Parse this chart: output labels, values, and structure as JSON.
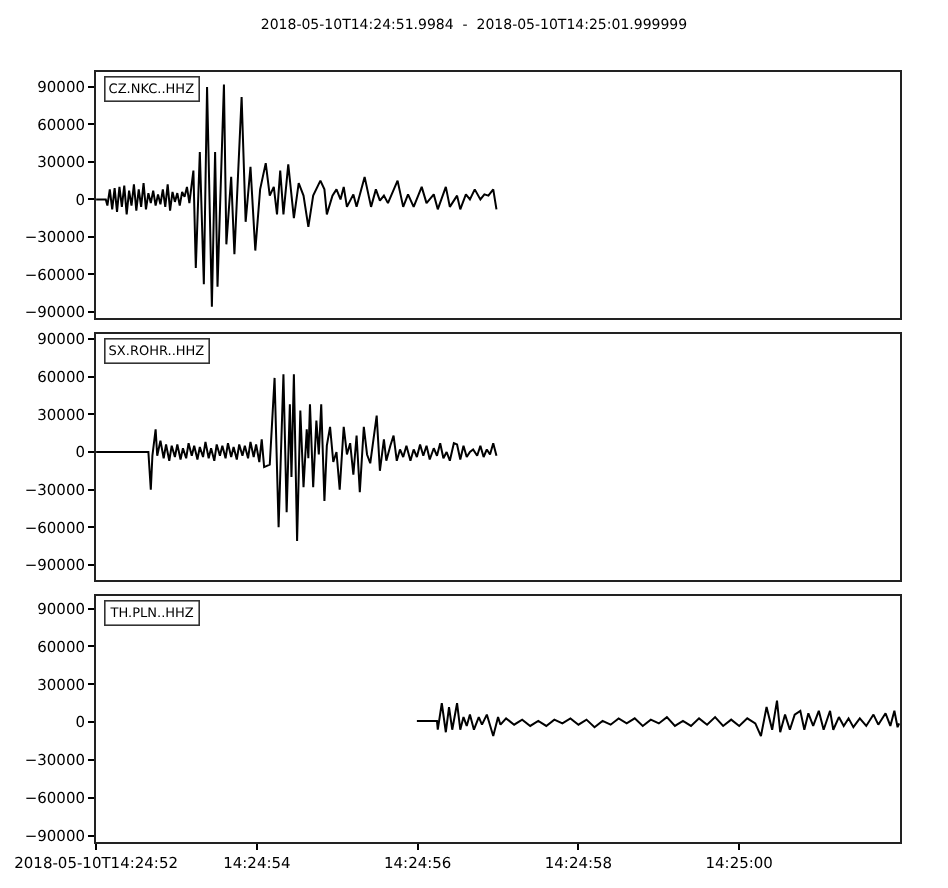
{
  "chart_data": [
    {
      "type": "line",
      "title": "2018-05-10T14:24:51.9984  -  2018-05-10T14:25:01.999999",
      "xlim": [
        "2018-05-10T14:24:51.9984",
        "2018-05-10T14:25:02"
      ],
      "ylim": [
        -95000,
        102000
      ],
      "yticks": [
        -90000,
        -60000,
        -30000,
        0,
        30000,
        60000,
        90000
      ],
      "tick_labels": "y",
      "series": [
        {
          "name": "CZ.NKC..HHZ",
          "color": "#000000",
          "x": [
            "2018-05-10T14:24:52.00",
            "2018-05-10T14:24:52.12",
            "2018-05-10T14:24:52.14",
            "2018-05-10T14:24:52.17",
            "2018-05-10T14:24:52.20",
            "2018-05-10T14:24:52.23",
            "2018-05-10T14:24:52.26",
            "2018-05-10T14:24:52.29",
            "2018-05-10T14:24:52.32",
            "2018-05-10T14:24:52.35",
            "2018-05-10T14:24:52.38",
            "2018-05-10T14:24:52.41",
            "2018-05-10T14:24:52.44",
            "2018-05-10T14:24:52.47",
            "2018-05-10T14:24:52.50",
            "2018-05-10T14:24:52.53",
            "2018-05-10T14:24:52.56",
            "2018-05-10T14:24:52.59",
            "2018-05-10T14:24:52.62",
            "2018-05-10T14:24:52.65",
            "2018-05-10T14:24:52.68",
            "2018-05-10T14:24:52.71",
            "2018-05-10T14:24:52.74",
            "2018-05-10T14:24:52.77",
            "2018-05-10T14:24:52.80",
            "2018-05-10T14:24:52.83",
            "2018-05-10T14:24:52.86",
            "2018-05-10T14:24:52.89",
            "2018-05-10T14:24:52.92",
            "2018-05-10T14:24:52.95",
            "2018-05-10T14:24:52.98",
            "2018-05-10T14:24:53.01",
            "2018-05-10T14:24:53.04",
            "2018-05-10T14:24:53.07",
            "2018-05-10T14:24:53.10",
            "2018-05-10T14:24:53.13",
            "2018-05-10T14:24:53.16",
            "2018-05-10T14:24:53.21",
            "2018-05-10T14:24:53.24",
            "2018-05-10T14:24:53.29",
            "2018-05-10T14:24:53.34",
            "2018-05-10T14:24:53.38",
            "2018-05-10T14:24:53.44",
            "2018-05-10T14:24:53.48",
            "2018-05-10T14:24:53.51",
            "2018-05-10T14:24:53.59",
            "2018-05-10T14:24:53.62",
            "2018-05-10T14:24:53.68",
            "2018-05-10T14:24:53.72",
            "2018-05-10T14:24:53.81",
            "2018-05-10T14:24:53.86",
            "2018-05-10T14:24:53.92",
            "2018-05-10T14:24:53.98",
            "2018-05-10T14:24:54.04",
            "2018-05-10T14:24:54.11",
            "2018-05-10T14:24:54.16",
            "2018-05-10T14:24:54.21",
            "2018-05-10T14:24:54.25",
            "2018-05-10T14:24:54.29",
            "2018-05-10T14:24:54.33",
            "2018-05-10T14:24:54.39",
            "2018-05-10T14:24:54.46",
            "2018-05-10T14:24:54.52",
            "2018-05-10T14:24:54.58",
            "2018-05-10T14:24:54.64",
            "2018-05-10T14:24:54.70",
            "2018-05-10T14:24:54.79",
            "2018-05-10T14:24:54.84",
            "2018-05-10T14:24:54.87",
            "2018-05-10T14:24:54.94",
            "2018-05-10T14:24:54.99",
            "2018-05-10T14:24:55.04",
            "2018-05-10T14:24:55.08",
            "2018-05-10T14:24:55.12",
            "2018-05-10T14:24:55.20",
            "2018-05-10T14:24:55.24",
            "2018-05-10T14:24:55.34",
            "2018-05-10T14:24:55.42",
            "2018-05-10T14:24:55.48",
            "2018-05-10T14:24:55.53",
            "2018-05-10T14:24:55.58",
            "2018-05-10T14:24:55.63",
            "2018-05-10T14:24:55.75",
            "2018-05-10T14:24:55.82",
            "2018-05-10T14:24:55.88",
            "2018-05-10T14:24:55.95",
            "2018-05-10T14:24:56.05",
            "2018-05-10T14:24:56.11",
            "2018-05-10T14:24:56.20",
            "2018-05-10T14:24:56.25",
            "2018-05-10T14:24:56.35",
            "2018-05-10T14:24:56.40",
            "2018-05-10T14:24:56.49",
            "2018-05-10T14:24:56.53",
            "2018-05-10T14:24:56.60",
            "2018-05-10T14:24:56.65",
            "2018-05-10T14:24:56.71",
            "2018-05-10T14:24:56.78",
            "2018-05-10T14:24:56.83",
            "2018-05-10T14:24:56.88",
            "2018-05-10T14:24:56.94",
            "2018-05-10T14:24:56.98"
          ],
          "values": [
            0,
            0,
            -5000,
            8000,
            -8000,
            9000,
            -10000,
            10000,
            -6000,
            11000,
            -12000,
            7000,
            -5000,
            12000,
            -9000,
            8000,
            -6000,
            13000,
            -8000,
            5000,
            -3000,
            7000,
            -5000,
            4000,
            -4000,
            8000,
            -6000,
            12000,
            -9000,
            6000,
            -2000,
            5000,
            -5000,
            6000,
            2000,
            10000,
            -3000,
            23000,
            -55000,
            38000,
            -68000,
            90000,
            -86000,
            38000,
            -70000,
            92000,
            -36000,
            18000,
            -44000,
            82000,
            -18000,
            26000,
            -41000,
            8000,
            29000,
            3000,
            10000,
            -12000,
            23000,
            -12000,
            28000,
            -15000,
            13000,
            3000,
            -22000,
            3000,
            15000,
            8000,
            -12000,
            3000,
            8000,
            0,
            10000,
            -6000,
            4000,
            -6000,
            18000,
            -6000,
            8000,
            -1000,
            3000,
            -3000,
            15000,
            -6000,
            4000,
            -6000,
            10000,
            -3000,
            4000,
            -8000,
            10000,
            -6000,
            3000,
            -8000,
            4000,
            0,
            8000,
            0,
            4000,
            3000,
            8000,
            -8000
          ]
        }
      ]
    },
    {
      "type": "line",
      "xlim": [
        "2018-05-10T14:24:51.9984",
        "2018-05-10T14:25:02"
      ],
      "ylim": [
        -102000,
        94000
      ],
      "yticks": [
        -90000,
        -60000,
        -30000,
        0,
        30000,
        60000,
        90000
      ],
      "tick_labels": "y",
      "series": [
        {
          "name": "SX.ROHR..HHZ",
          "color": "#000000",
          "x": [
            "2018-05-10T14:24:52.00",
            "2018-05-10T14:24:52.65",
            "2018-05-10T14:24:52.68",
            "2018-05-10T14:24:52.70",
            "2018-05-10T14:24:52.74",
            "2018-05-10T14:24:52.76",
            "2018-05-10T14:24:52.80",
            "2018-05-10T14:24:52.84",
            "2018-05-10T14:24:52.87",
            "2018-05-10T14:24:52.91",
            "2018-05-10T14:24:52.94",
            "2018-05-10T14:24:52.98",
            "2018-05-10T14:24:53.01",
            "2018-05-10T14:24:53.05",
            "2018-05-10T14:24:53.08",
            "2018-05-10T14:24:53.12",
            "2018-05-10T14:24:53.15",
            "2018-05-10T14:24:53.19",
            "2018-05-10T14:24:53.22",
            "2018-05-10T14:24:53.26",
            "2018-05-10T14:24:53.29",
            "2018-05-10T14:24:53.33",
            "2018-05-10T14:24:53.36",
            "2018-05-10T14:24:53.40",
            "2018-05-10T14:24:53.43",
            "2018-05-10T14:24:53.47",
            "2018-05-10T14:24:53.50",
            "2018-05-10T14:24:53.54",
            "2018-05-10T14:24:53.57",
            "2018-05-10T14:24:53.61",
            "2018-05-10T14:24:53.64",
            "2018-05-10T14:24:53.68",
            "2018-05-10T14:24:53.71",
            "2018-05-10T14:24:53.75",
            "2018-05-10T14:24:53.78",
            "2018-05-10T14:24:53.82",
            "2018-05-10T14:24:53.85",
            "2018-05-10T14:24:53.89",
            "2018-05-10T14:24:53.92",
            "2018-05-10T14:24:53.96",
            "2018-05-10T14:24:53.99",
            "2018-05-10T14:24:54.03",
            "2018-05-10T14:24:54.06",
            "2018-05-10T14:24:54.09",
            "2018-05-10T14:24:54.16",
            "2018-05-10T14:24:54.22",
            "2018-05-10T14:24:54.27",
            "2018-05-10T14:24:54.33",
            "2018-05-10T14:24:54.37",
            "2018-05-10T14:24:54.41",
            "2018-05-10T14:24:54.43",
            "2018-05-10T14:24:54.46",
            "2018-05-10T14:24:54.50",
            "2018-05-10T14:24:54.54",
            "2018-05-10T14:24:54.58",
            "2018-05-10T14:24:54.62",
            "2018-05-10T14:24:54.64",
            "2018-05-10T14:24:54.66",
            "2018-05-10T14:24:54.70",
            "2018-05-10T14:24:54.74",
            "2018-05-10T14:24:54.77",
            "2018-05-10T14:24:54.80",
            "2018-05-10T14:24:54.84",
            "2018-05-10T14:24:54.87",
            "2018-05-10T14:24:54.91",
            "2018-05-10T14:24:54.95",
            "2018-05-10T14:24:54.99",
            "2018-05-10T14:24:55.03",
            "2018-05-10T14:24:55.08",
            "2018-05-10T14:24:55.12",
            "2018-05-10T14:24:55.16",
            "2018-05-10T14:24:55.20",
            "2018-05-10T14:24:55.24",
            "2018-05-10T14:24:55.28",
            "2018-05-10T14:24:55.33",
            "2018-05-10T14:24:55.37",
            "2018-05-10T14:24:55.41",
            "2018-05-10T14:24:55.45",
            "2018-05-10T14:24:55.49",
            "2018-05-10T14:24:55.53",
            "2018-05-10T14:24:55.58",
            "2018-05-10T14:24:55.61",
            "2018-05-10T14:24:55.66",
            "2018-05-10T14:24:55.70",
            "2018-05-10T14:24:55.74",
            "2018-05-10T14:24:55.78",
            "2018-05-10T14:24:55.82",
            "2018-05-10T14:24:55.86",
            "2018-05-10T14:24:55.91",
            "2018-05-10T14:24:55.95",
            "2018-05-10T14:24:55.99",
            "2018-05-10T14:24:56.03",
            "2018-05-10T14:24:56.07",
            "2018-05-10T14:24:56.11",
            "2018-05-10T14:24:56.15",
            "2018-05-10T14:24:56.20",
            "2018-05-10T14:24:56.24",
            "2018-05-10T14:24:56.28",
            "2018-05-10T14:24:56.32",
            "2018-05-10T14:24:56.36",
            "2018-05-10T14:24:56.40",
            "2018-05-10T14:24:56.45",
            "2018-05-10T14:24:56.49",
            "2018-05-10T14:24:56.53",
            "2018-05-10T14:24:56.57",
            "2018-05-10T14:24:56.61",
            "2018-05-10T14:24:56.65",
            "2018-05-10T14:24:56.69",
            "2018-05-10T14:24:56.74",
            "2018-05-10T14:24:56.78",
            "2018-05-10T14:24:56.82",
            "2018-05-10T14:24:56.86",
            "2018-05-10T14:24:56.90",
            "2018-05-10T14:24:56.94",
            "2018-05-10T14:24:56.98"
          ],
          "values": [
            0,
            0,
            -30000,
            -3000,
            18000,
            -3000,
            9000,
            -5000,
            6000,
            -7000,
            5000,
            -4000,
            6000,
            -6000,
            3000,
            -5000,
            7000,
            -3000,
            5000,
            -6000,
            4000,
            -4000,
            8000,
            -5000,
            3000,
            -7000,
            6000,
            -3000,
            5000,
            -5000,
            7000,
            -4000,
            4000,
            -6000,
            6000,
            -3000,
            5000,
            -5000,
            8000,
            -4000,
            6000,
            -8000,
            10000,
            -12000,
            -10000,
            59000,
            -60000,
            62000,
            -48000,
            38000,
            -20000,
            62000,
            -71000,
            33000,
            -28000,
            18000,
            -5000,
            38000,
            -28000,
            25000,
            -2000,
            38000,
            -39000,
            5000,
            20000,
            -8000,
            0,
            -30000,
            20000,
            -2000,
            7000,
            -18000,
            13000,
            -32000,
            20000,
            -2000,
            -9000,
            10000,
            29000,
            -15000,
            10000,
            -7000,
            5000,
            13000,
            -7000,
            2000,
            -4000,
            5000,
            -7000,
            2000,
            -4000,
            6000,
            -3000,
            5000,
            -6000,
            3000,
            -3000,
            7000,
            -5000,
            0,
            -7000,
            7000,
            6000,
            -6000,
            5000,
            -4000,
            0,
            2000,
            -3000,
            5000,
            -4000,
            2000,
            -2000,
            7000,
            -3000
          ]
        }
      ]
    },
    {
      "type": "line",
      "xlim": [
        "2018-05-10T14:24:51.9984",
        "2018-05-10T14:25:02"
      ],
      "ylim": [
        -95000,
        100000
      ],
      "xticks": [
        {
          "value": "2018-05-10T14:24:52",
          "label": "2018-05-10T14:24:52"
        },
        {
          "value": "2018-05-10T14:24:54",
          "label": "14:24:54"
        },
        {
          "value": "2018-05-10T14:24:56",
          "label": "14:24:56"
        },
        {
          "value": "2018-05-10T14:24:58",
          "label": "14:24:58"
        },
        {
          "value": "2018-05-10T14:25:00",
          "label": "14:25:00"
        }
      ],
      "yticks": [
        -90000,
        -60000,
        -30000,
        0,
        30000,
        60000,
        90000
      ],
      "series": [
        {
          "name": "TH.PLN..HHZ",
          "color": "#000000",
          "x": [
            "2018-05-10T14:24:55.99",
            "2018-05-10T14:24:56.24",
            "2018-05-10T14:24:56.25",
            "2018-05-10T14:24:56.30",
            "2018-05-10T14:24:56.35",
            "2018-05-10T14:24:56.39",
            "2018-05-10T14:24:56.43",
            "2018-05-10T14:24:56.49",
            "2018-05-10T14:24:56.53",
            "2018-05-10T14:24:56.57",
            "2018-05-10T14:24:56.61",
            "2018-05-10T14:24:56.65",
            "2018-05-10T14:24:56.70",
            "2018-05-10T14:24:56.76",
            "2018-05-10T14:24:56.80",
            "2018-05-10T14:24:56.86",
            "2018-05-10T14:24:56.94",
            "2018-05-10T14:24:57.00",
            "2018-05-10T14:24:57.03",
            "2018-05-10T14:24:57.10",
            "2018-05-10T14:24:57.20",
            "2018-05-10T14:24:57.30",
            "2018-05-10T14:24:57.40",
            "2018-05-10T14:24:57.50",
            "2018-05-10T14:24:57.60",
            "2018-05-10T14:24:57.70",
            "2018-05-10T14:24:57.80",
            "2018-05-10T14:24:57.90",
            "2018-05-10T14:24:58.00",
            "2018-05-10T14:24:58.10",
            "2018-05-10T14:24:58.20",
            "2018-05-10T14:24:58.30",
            "2018-05-10T14:24:58.40",
            "2018-05-10T14:24:58.50",
            "2018-05-10T14:24:58.60",
            "2018-05-10T14:24:58.70",
            "2018-05-10T14:24:58.80",
            "2018-05-10T14:24:58.90",
            "2018-05-10T14:24:59.00",
            "2018-05-10T14:24:59.10",
            "2018-05-10T14:24:59.20",
            "2018-05-10T14:24:59.30",
            "2018-05-10T14:24:59.40",
            "2018-05-10T14:24:59.50",
            "2018-05-10T14:24:59.60",
            "2018-05-10T14:24:59.70",
            "2018-05-10T14:24:59.80",
            "2018-05-10T14:24:59.90",
            "2018-05-10T14:25:00.00",
            "2018-05-10T14:25:00.10",
            "2018-05-10T14:25:00.20",
            "2018-05-10T14:25:00.27",
            "2018-05-10T14:25:00.34",
            "2018-05-10T14:25:00.41",
            "2018-05-10T14:25:00.47",
            "2018-05-10T14:25:00.51",
            "2018-05-10T14:25:00.57",
            "2018-05-10T14:25:00.63",
            "2018-05-10T14:25:00.69",
            "2018-05-10T14:25:00.76",
            "2018-05-10T14:25:00.81",
            "2018-05-10T14:25:00.86",
            "2018-05-10T14:25:00.92",
            "2018-05-10T14:25:00.99",
            "2018-05-10T14:25:01.05",
            "2018-05-10T14:25:01.13",
            "2018-05-10T14:25:01.17",
            "2018-05-10T14:25:01.24",
            "2018-05-10T14:25:01.30",
            "2018-05-10T14:25:01.36",
            "2018-05-10T14:25:01.42",
            "2018-05-10T14:25:01.50",
            "2018-05-10T14:25:01.58",
            "2018-05-10T14:25:01.67",
            "2018-05-10T14:25:01.73",
            "2018-05-10T14:25:01.82",
            "2018-05-10T14:25:01.88",
            "2018-05-10T14:25:01.93",
            "2018-05-10T14:25:01.97",
            "2018-05-10T14:25:01.99"
          ],
          "values": [
            1000,
            1000,
            -6000,
            15000,
            -8000,
            12000,
            -6000,
            15000,
            -6000,
            4000,
            -3000,
            6000,
            -6000,
            4000,
            -2000,
            6000,
            -11000,
            4000,
            -2000,
            3000,
            -2000,
            2000,
            -3000,
            1000,
            -3000,
            2000,
            -1000,
            3000,
            -2000,
            2000,
            -4000,
            1000,
            -2000,
            3000,
            -1000,
            3000,
            -3000,
            2000,
            -1000,
            4000,
            -3000,
            1000,
            -3000,
            3000,
            -2000,
            4000,
            -3000,
            2000,
            -3000,
            3000,
            -1000,
            -11000,
            12000,
            -6000,
            17000,
            -8000,
            6000,
            -6000,
            6000,
            9000,
            -6000,
            7000,
            -3000,
            9000,
            -6000,
            9000,
            -6000,
            4000,
            -3000,
            3000,
            -4000,
            3000,
            -3000,
            6000,
            -2000,
            7000,
            -3000,
            9000,
            -4000,
            -1000
          ]
        }
      ]
    }
  ]
}
